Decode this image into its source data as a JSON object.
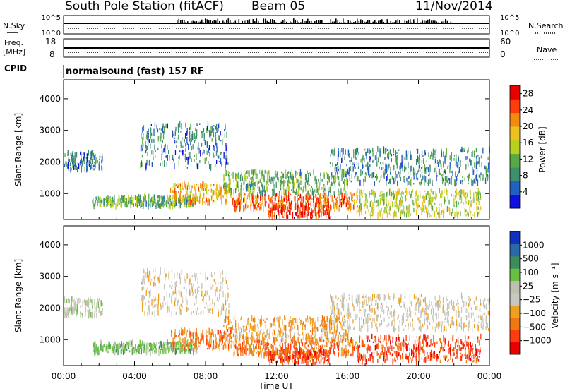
{
  "header": {
    "station": "South Pole Station (fitACF)",
    "beam": "Beam 05",
    "date": "11/Nov/2014"
  },
  "param_panels": {
    "nsky_label": "N.Sky",
    "nsearch_label": "N.Search",
    "freq_label_top": "Freq.",
    "freq_label_unit": "[MHz]",
    "nave_label": "Nave",
    "cpid_label": "CPID",
    "cpid_value": "normalsound (fast) 157 RF",
    "noise_ticks": {
      "top": "10^5",
      "bottom": "10^0"
    },
    "freq_ticks_left": {
      "top": "18",
      "bottom": "8"
    },
    "nave_ticks_right": {
      "top": "60",
      "bottom": "0"
    }
  },
  "chart_data": [
    {
      "type": "heatmap",
      "name": "power",
      "ylabel": "Slant Range [km]",
      "ylim": [
        180,
        4600
      ],
      "yticks": [
        "1000",
        "2000",
        "3000",
        "4000"
      ],
      "ytick_values": [
        1000,
        2000,
        3000,
        4000
      ],
      "xlim_hours": [
        0,
        24
      ],
      "colorbar": {
        "label": "Power [dB]",
        "ticks": [
          "4",
          "8",
          "12",
          "16",
          "20",
          "24",
          "28"
        ],
        "tick_values": [
          4,
          8,
          12,
          16,
          20,
          24,
          28
        ],
        "range": [
          0,
          30
        ],
        "colors": [
          "#1010e0",
          "#2060c0",
          "#3f8f6f",
          "#58a848",
          "#b8d020",
          "#f0c020",
          "#f08c10",
          "#ff3c0a",
          "#e80000"
        ]
      },
      "echo_bands": [
        {
          "t0": 0.0,
          "t1": 2.2,
          "r0": 1750,
          "r1": 2300,
          "level": 6
        },
        {
          "t0": 1.6,
          "t1": 7.5,
          "r0": 600,
          "r1": 900,
          "level": 11
        },
        {
          "t0": 4.3,
          "t1": 9.3,
          "r0": 1800,
          "r1": 3200,
          "level": 6
        },
        {
          "t0": 6.0,
          "t1": 9.5,
          "r0": 700,
          "r1": 1300,
          "level": 20
        },
        {
          "t0": 9.5,
          "t1": 16.5,
          "r0": 500,
          "r1": 1000,
          "level": 24
        },
        {
          "t0": 11.5,
          "t1": 15.0,
          "r0": 250,
          "r1": 650,
          "level": 27
        },
        {
          "t0": 15.0,
          "t1": 24.0,
          "r0": 1300,
          "r1": 2400,
          "level": 7
        },
        {
          "t0": 16.5,
          "t1": 23.5,
          "r0": 300,
          "r1": 1100,
          "level": 15
        },
        {
          "t0": 9.0,
          "t1": 16.0,
          "r0": 1000,
          "r1": 1700,
          "level": 11
        }
      ]
    },
    {
      "type": "heatmap",
      "name": "velocity",
      "ylabel": "Slant Range [km]",
      "xlabel": "Time UT",
      "ylim": [
        180,
        4600
      ],
      "yticks": [
        "1000",
        "2000",
        "3000",
        "4000"
      ],
      "ytick_values": [
        1000,
        2000,
        3000,
        4000
      ],
      "xticks": [
        "00:00",
        "04:00",
        "08:00",
        "12:00",
        "16:00",
        "20:00",
        "00:00"
      ],
      "xtick_values": [
        0,
        4,
        8,
        12,
        16,
        20,
        24
      ],
      "colorbar": {
        "label": "Velocity [m s⁻¹]",
        "ticks": [
          "1000",
          "500",
          "100",
          "25",
          "−25",
          "−100",
          "−500",
          "−1000"
        ],
        "tick_values": [
          1000,
          500,
          100,
          25,
          -25,
          -100,
          -500,
          -1000
        ],
        "colors": [
          "#1030c0",
          "#2a68a8",
          "#3c8c5c",
          "#68c040",
          "#c0c0b0",
          "#c8c8c0",
          "#f0a020",
          "#f07810",
          "#ff3c10",
          "#e80000"
        ]
      },
      "echo_bands": [
        {
          "t0": 0.0,
          "t1": 2.2,
          "r0": 1750,
          "r1": 2300,
          "level": 4
        },
        {
          "t0": 1.6,
          "t1": 7.5,
          "r0": 600,
          "r1": 900,
          "level": 3
        },
        {
          "t0": 4.3,
          "t1": 9.3,
          "r0": 1800,
          "r1": 3200,
          "level": 5
        },
        {
          "t0": 6.0,
          "t1": 9.5,
          "r0": 700,
          "r1": 1300,
          "level": 7
        },
        {
          "t0": 9.5,
          "t1": 16.5,
          "r0": 500,
          "r1": 1000,
          "level": 7
        },
        {
          "t0": 11.5,
          "t1": 15.0,
          "r0": 250,
          "r1": 650,
          "level": 8
        },
        {
          "t0": 15.0,
          "t1": 24.0,
          "r0": 1300,
          "r1": 2400,
          "level": 5
        },
        {
          "t0": 16.5,
          "t1": 23.5,
          "r0": 300,
          "r1": 1100,
          "level": 8
        },
        {
          "t0": 9.0,
          "t1": 16.0,
          "r0": 1000,
          "r1": 1700,
          "level": 6
        }
      ]
    }
  ]
}
